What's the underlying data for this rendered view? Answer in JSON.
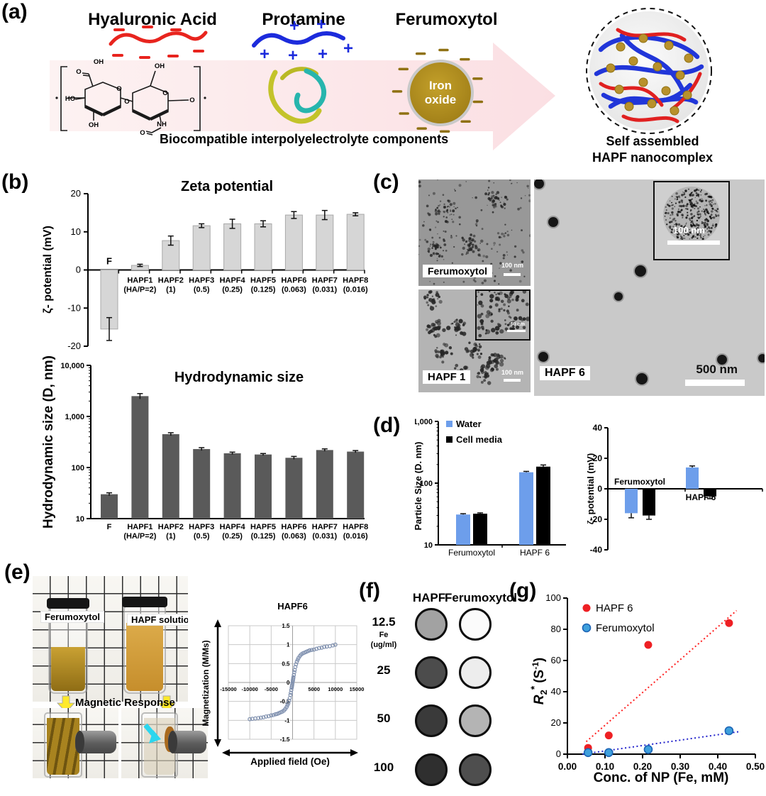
{
  "panel_labels": {
    "a": "(a)",
    "b": "(b)",
    "c": "(c)",
    "d": "(d)",
    "e": "(e)",
    "f": "(f)",
    "g": "(g)"
  },
  "panel_a": {
    "hyaluronic_acid": "Hyaluronic Acid",
    "protamine": "Protamine",
    "ferumoxytol": "Ferumoxytol",
    "iron_oxide_line1": "Iron",
    "iron_oxide_line2": "oxide",
    "caption": "Biocompatible interpolyelectrolyte components",
    "product_line1": "Self assembled",
    "product_line2": "HAPF nanocomplex",
    "molecule_atoms": [
      "OH",
      "O",
      "OH",
      "O",
      "O",
      "HO",
      "O",
      "OH",
      "NH",
      "O",
      "O"
    ]
  },
  "panel_c": {
    "images": [
      {
        "label": "Ferumoxytol",
        "scale_bar": "100 nm"
      },
      {
        "label": "HAPF 1",
        "scale_bar": "100 nm",
        "inset_scale_bar": "50 nm"
      },
      {
        "label": "HAPF 6",
        "scale_bar": "500 nm",
        "inset_scale_bar": "100 nm"
      }
    ]
  },
  "panel_e": {
    "vial_left": "Ferumoxytol",
    "vial_right": "HAPF solution",
    "magnetic_response": "Magnetic Response"
  },
  "panel_f": {
    "col1": "HAPF",
    "col2": "Ferumoxytol",
    "rows": [
      {
        "conc": "12.5",
        "unit1": "Fe",
        "unit2": "(ug/ml)",
        "hapf_color": "#a2a2a2",
        "feru_color": "#fbfbfb"
      },
      {
        "conc": "25",
        "hapf_color": "#4c4c4c",
        "feru_color": "#ededed"
      },
      {
        "conc": "50",
        "hapf_color": "#3a3a3a",
        "feru_color": "#b4b4b4"
      },
      {
        "conc": "100",
        "hapf_color": "#2f2f2f",
        "feru_color": "#4e4e4e"
      }
    ]
  },
  "chart_data": [
    {
      "id": "zeta",
      "type": "bar",
      "title": "Zeta potential",
      "ylabel": "ζ- potential (mV)",
      "ylim": [
        -20,
        20
      ],
      "yticks": [
        20,
        10,
        0,
        -10,
        -20
      ],
      "categories_line1": [
        "F",
        "HAPF1",
        "HAPF2",
        "HAPF3",
        "HAPF4",
        "HAPF5",
        "HAPF6",
        "HAPF7",
        "HAPF8"
      ],
      "categories_line2": [
        "",
        "(HA/P=2)",
        "(1)",
        "(0.5)",
        "(0.25)",
        "(0.125)",
        "(0.063)",
        "(0.031)",
        "(0.016)"
      ],
      "values": [
        -15.5,
        1.2,
        7.7,
        11.6,
        12.1,
        12.1,
        14.4,
        14.4,
        14.6
      ],
      "errors": [
        3.0,
        0.3,
        1.2,
        0.5,
        1.2,
        0.8,
        0.9,
        1.2,
        0.4
      ],
      "bar_color": "#d6d6d6",
      "bar_edge": "#a9a9a9"
    },
    {
      "id": "hydro",
      "type": "bar-log",
      "title": "Hydrodynamic size",
      "ylabel": "Hydrodynamic size (D, nm)",
      "ylim": [
        10,
        10000
      ],
      "ytick_labels": [
        "10",
        "100",
        "1,000",
        "10,000"
      ],
      "values": [
        30,
        2500,
        450,
        230,
        190,
        180,
        155,
        220,
        205
      ],
      "errors": [
        2,
        300,
        30,
        15,
        10,
        8,
        10,
        12,
        10
      ],
      "bar_color": "#5a5a5a"
    },
    {
      "id": "particle",
      "type": "grouped-bar-log",
      "ylabel": "Particle Size (D. nm)",
      "ylim": [
        10,
        1000
      ],
      "ytick_labels": [
        "10",
        "100",
        "1,000"
      ],
      "categories": [
        "Ferumoxytol",
        "HAPF 6"
      ],
      "series": [
        {
          "name": "Water",
          "color": "#6d9eeb",
          "values": [
            31,
            150
          ],
          "errors": [
            1,
            5
          ]
        },
        {
          "name": "Cell media",
          "color": "#000000",
          "values": [
            32,
            185
          ],
          "errors": [
            1,
            12
          ]
        }
      ]
    },
    {
      "id": "zeta2",
      "type": "grouped-bar",
      "ylabel": "ζ- potential (mV)",
      "ylim": [
        -40,
        40
      ],
      "yticks": [
        40,
        20,
        0,
        -20,
        -40
      ],
      "categories": [
        "Ferumoxytol",
        "HAPF 6"
      ],
      "series": [
        {
          "name": "Water",
          "color": "#6d9eeb",
          "values": [
            -16,
            14
          ],
          "errors": [
            3,
            1
          ]
        },
        {
          "name": "Cell media",
          "color": "#000000",
          "values": [
            -17.5,
            -5
          ],
          "errors": [
            2.5,
            1.5
          ]
        }
      ]
    },
    {
      "id": "magnet",
      "type": "scatter-line",
      "title": "HAPF6",
      "xlabel": "Applied field (Oe)",
      "ylabel": "Magnetization (M/Ms)",
      "xlim": [
        -15000,
        15000
      ],
      "ylim": [
        -1.5,
        1.5
      ],
      "xticks": [
        -15000,
        -10000,
        -5000,
        5000,
        10000,
        15000
      ],
      "yticks": [
        1.5,
        1,
        0.5,
        0,
        -0.5,
        -1,
        -1.5
      ],
      "marker_color": "#7e8fae",
      "x": [
        -10000,
        -9400,
        -8700,
        -8000,
        -7400,
        -6800,
        -6200,
        -5600,
        -5000,
        -4500,
        -4000,
        -3600,
        -3200,
        -2800,
        -2400,
        -2000,
        -1700,
        -1400,
        -1200,
        -1000,
        -800,
        -650,
        -500,
        -400,
        -300,
        -200,
        -150,
        -100,
        -50,
        50,
        100,
        150,
        200,
        300,
        400,
        500,
        650,
        800,
        1000,
        1200,
        1400,
        1700,
        2000,
        2400,
        2800,
        3200,
        3600,
        4000,
        4500,
        5000,
        5600,
        6200,
        6800,
        7400,
        8000,
        8700,
        9400,
        10000
      ],
      "y": [
        -0.97,
        -0.96,
        -0.95,
        -0.94,
        -0.93,
        -0.92,
        -0.9,
        -0.89,
        -0.87,
        -0.86,
        -0.84,
        -0.83,
        -0.81,
        -0.79,
        -0.77,
        -0.74,
        -0.7,
        -0.65,
        -0.6,
        -0.55,
        -0.48,
        -0.41,
        -0.33,
        -0.27,
        -0.2,
        -0.14,
        -0.1,
        -0.07,
        -0.03,
        0.03,
        0.07,
        0.1,
        0.14,
        0.2,
        0.27,
        0.33,
        0.41,
        0.48,
        0.55,
        0.6,
        0.65,
        0.7,
        0.74,
        0.77,
        0.79,
        0.81,
        0.83,
        0.85,
        0.86,
        0.87,
        0.89,
        0.91,
        0.92,
        0.94,
        0.95,
        0.96,
        0.98,
        1.0
      ]
    },
    {
      "id": "r2",
      "type": "scatter",
      "xlabel": "Conc. of NP (Fe, mM)",
      "ylabel_parts": [
        "R",
        "2",
        "*",
        "(S",
        "-1",
        ")"
      ],
      "xlim": [
        0,
        0.5
      ],
      "ylim": [
        0,
        100
      ],
      "xtick_labels": [
        "0.00",
        "0.10",
        "0.20",
        "0.30",
        "0.40",
        "0.50"
      ],
      "yticks": [
        0,
        20,
        40,
        60,
        80,
        100
      ],
      "series": [
        {
          "name": "HAPF 6",
          "color": "#ee2024",
          "x": [
            0.055,
            0.11,
            0.215,
            0.43
          ],
          "y": [
            4,
            12,
            70,
            84
          ],
          "trend": {
            "x1": 0.05,
            "y1": 8,
            "x2": 0.45,
            "y2": 92,
            "color": "#ff1f1f"
          }
        },
        {
          "name": "Ferumoxytol",
          "color": "#3fa0dc",
          "edge": "#1b63b5",
          "x": [
            0.055,
            0.11,
            0.215,
            0.43
          ],
          "y": [
            1,
            1,
            3,
            15
          ],
          "trend": {
            "x1": 0.04,
            "y1": 0,
            "x2": 0.46,
            "y2": 14.5,
            "color": "#2323cc"
          }
        }
      ]
    }
  ]
}
